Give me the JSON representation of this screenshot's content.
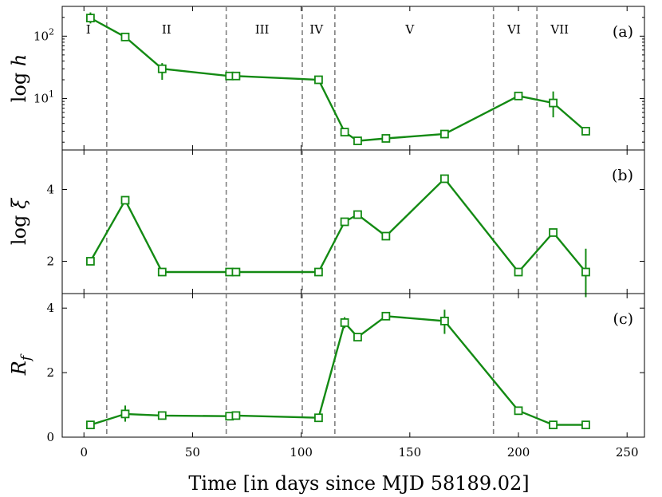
{
  "chart_data": [
    {
      "type": "line",
      "panel": "a",
      "panel_tag": "(a)",
      "ylabel_prefix": "log",
      "ylabel_symbol": "h",
      "yscale": "log",
      "ylim": [
        1.5,
        300
      ],
      "yticks": [
        {
          "value": 10,
          "base": "10",
          "exp": "1"
        },
        {
          "value": 100,
          "base": "10",
          "exp": "2"
        }
      ],
      "phase_labels": [
        {
          "label": "I",
          "x": 2
        },
        {
          "label": "II",
          "x": 38
        },
        {
          "label": "III",
          "x": 82
        },
        {
          "label": "IV",
          "x": 107
        },
        {
          "label": "V",
          "x": 150
        },
        {
          "label": "VI",
          "x": 198
        },
        {
          "label": "VII",
          "x": 219
        }
      ],
      "series": [
        {
          "color": "#138a13",
          "points": [
            {
              "x": 3,
              "y": 195,
              "err": [
                160,
                240
              ]
            },
            {
              "x": 19,
              "y": 97
            },
            {
              "x": 36,
              "y": 30,
              "err": [
                20,
                37
              ]
            },
            {
              "x": 67,
              "y": 23
            },
            {
              "x": 70,
              "y": 23,
              "err": [
                20,
                24
              ]
            },
            {
              "x": 108,
              "y": 20
            },
            {
              "x": 120,
              "y": 2.9
            },
            {
              "x": 126,
              "y": 2.1
            },
            {
              "x": 139,
              "y": 2.3
            },
            {
              "x": 166,
              "y": 2.7
            },
            {
              "x": 200,
              "y": 11,
              "err": [
                9.5,
                12
              ]
            },
            {
              "x": 216,
              "y": 8.5,
              "err": [
                5.0,
                13
              ]
            },
            {
              "x": 231,
              "y": 3.0
            }
          ]
        }
      ]
    },
    {
      "type": "line",
      "panel": "b",
      "panel_tag": "(b)",
      "ylabel_prefix": "log",
      "ylabel_symbol": "ξ",
      "yscale": "linear",
      "ylim": [
        1.1,
        5.1
      ],
      "yticks": [
        {
          "value": 2,
          "label": "2"
        },
        {
          "value": 4,
          "label": "4"
        }
      ],
      "series": [
        {
          "color": "#138a13",
          "points": [
            {
              "x": 3,
              "y": 2.0
            },
            {
              "x": 19,
              "y": 3.7
            },
            {
              "x": 36,
              "y": 1.7
            },
            {
              "x": 67,
              "y": 1.7
            },
            {
              "x": 70,
              "y": 1.7
            },
            {
              "x": 108,
              "y": 1.7
            },
            {
              "x": 120,
              "y": 3.1
            },
            {
              "x": 126,
              "y": 3.3
            },
            {
              "x": 139,
              "y": 2.7
            },
            {
              "x": 166,
              "y": 4.3
            },
            {
              "x": 200,
              "y": 1.7
            },
            {
              "x": 216,
              "y": 2.8
            },
            {
              "x": 231,
              "y": 1.7,
              "err": [
                1.0,
                2.35
              ]
            }
          ]
        }
      ]
    },
    {
      "type": "line",
      "panel": "c",
      "panel_tag": "(c)",
      "ylabel_symbol": "R",
      "ylabel_sub": "f",
      "yscale": "linear",
      "ylim": [
        0,
        4.45
      ],
      "yticks": [
        {
          "value": 0,
          "label": "0"
        },
        {
          "value": 2,
          "label": "2"
        },
        {
          "value": 4,
          "label": "4"
        }
      ],
      "series": [
        {
          "color": "#138a13",
          "points": [
            {
              "x": 3,
              "y": 0.38
            },
            {
              "x": 19,
              "y": 0.72,
              "err": [
                0.48,
                0.98
              ]
            },
            {
              "x": 36,
              "y": 0.67,
              "err": [
                0.55,
                0.72
              ]
            },
            {
              "x": 67,
              "y": 0.65
            },
            {
              "x": 70,
              "y": 0.67
            },
            {
              "x": 108,
              "y": 0.6
            },
            {
              "x": 120,
              "y": 3.55,
              "err": [
                3.38,
                3.72
              ]
            },
            {
              "x": 126,
              "y": 3.1
            },
            {
              "x": 139,
              "y": 3.75
            },
            {
              "x": 166,
              "y": 3.6,
              "err": [
                3.2,
                3.95
              ]
            },
            {
              "x": 200,
              "y": 0.82
            },
            {
              "x": 216,
              "y": 0.38
            },
            {
              "x": 231,
              "y": 0.38
            }
          ]
        }
      ]
    }
  ],
  "shared_x": {
    "xlabel": "Time [in days since MJD 58189.02]",
    "xlim": [
      -10,
      258
    ],
    "xticks": [
      0,
      50,
      100,
      150,
      200,
      250
    ],
    "phase_boundaries": [
      10.5,
      65.5,
      100.5,
      115.5,
      188.5,
      208.5
    ]
  }
}
